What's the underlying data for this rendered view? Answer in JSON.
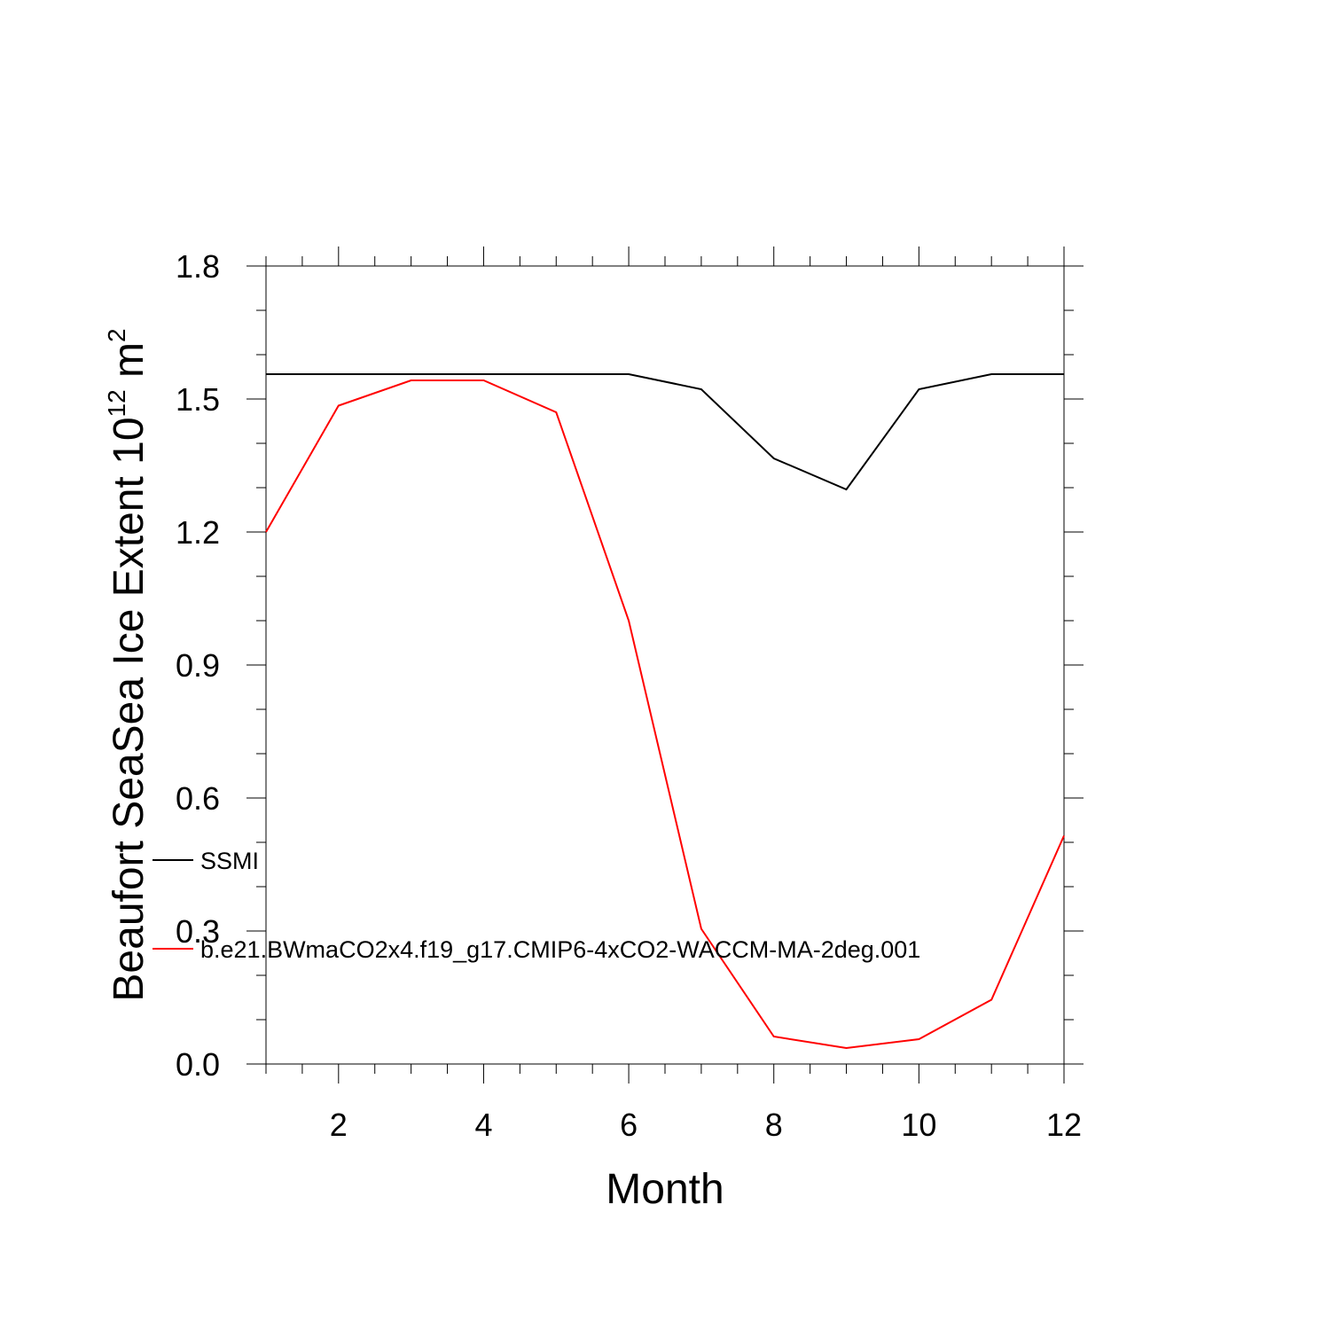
{
  "chart_data": {
    "type": "line",
    "xlabel": "Month",
    "ylabel": {
      "prefix": "Beaufort SeaSea Ice Extent 10",
      "exponent": "12",
      "unit": " m",
      "unit_exponent": "2"
    },
    "xlim": [
      1,
      12
    ],
    "ylim": [
      0,
      1.8
    ],
    "x_ticks": [
      2,
      4,
      6,
      8,
      10,
      12
    ],
    "x_tick_labels": [
      "2",
      "4",
      "6",
      "8",
      "10",
      "12"
    ],
    "y_ticks": [
      0,
      0.3,
      0.6,
      0.9,
      1.2,
      1.5,
      1.8
    ],
    "y_tick_labels": [
      "0.0",
      "0.3",
      "0.6",
      "0.9",
      "1.2",
      "1.5",
      "1.8"
    ],
    "x": [
      1,
      2,
      3,
      4,
      5,
      6,
      7,
      8,
      9,
      10,
      11,
      12
    ],
    "series": [
      {
        "name": "SSMI",
        "color": "#000000",
        "values": [
          1.556,
          1.556,
          1.556,
          1.556,
          1.556,
          1.556,
          1.522,
          1.366,
          1.296,
          1.522,
          1.556,
          1.556
        ]
      },
      {
        "name": "b.e21.BWmaCO2x4.f19_g17.CMIP6-4xCO2-WACCM-MA-2deg.001",
        "color": "#ff0000",
        "values": [
          1.2,
          1.485,
          1.542,
          1.542,
          1.47,
          1.0,
          0.305,
          0.062,
          0.036,
          0.056,
          0.145,
          0.515
        ]
      }
    ],
    "grid": false,
    "legend": "left-lower-inside"
  }
}
